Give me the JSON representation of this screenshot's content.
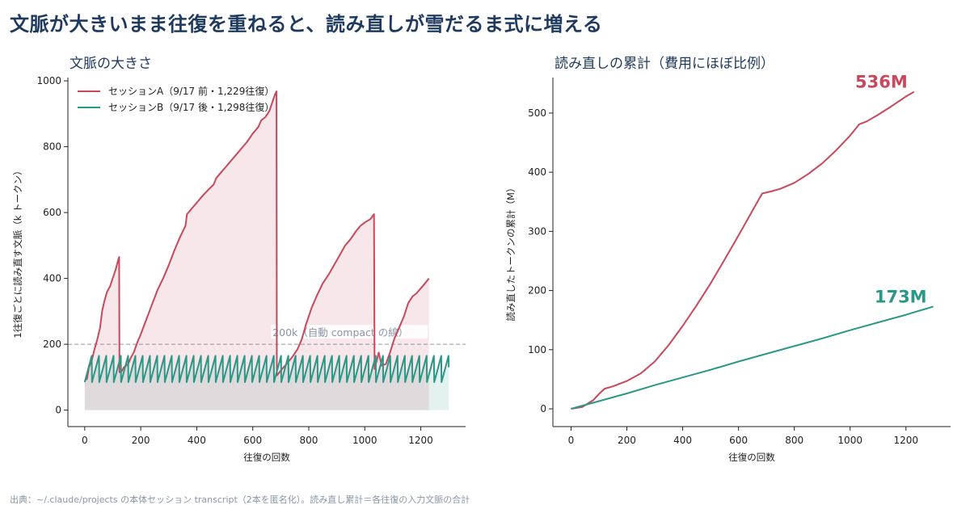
{
  "headline": "文脈が大きいまま往復を重ねると、読み直しが雪だるま式に増える",
  "footer": "出典：~/.claude/projects の本体セッション transcript（2本を匿名化）。読み直し累計＝各往復の入力文脈の合計",
  "colors": {
    "session_a": "#c9485b",
    "session_b": "#2a9886",
    "title": "#1f3a5f",
    "threshold": "#8a96a6"
  },
  "chart_data": [
    {
      "type": "line",
      "title": "文脈の大きさ",
      "xlabel": "往復の回数",
      "ylabel": "1往復ごとに読み直す文脈（k トークン）",
      "xlim": [
        -60,
        1360
      ],
      "ylim": [
        -50,
        1010
      ],
      "xticks": [
        0,
        200,
        400,
        600,
        800,
        1000,
        1200
      ],
      "yticks": [
        0,
        200,
        400,
        600,
        800,
        1000
      ],
      "grid": false,
      "legend_position": "top-left",
      "fill_under": true,
      "threshold": {
        "y": 200,
        "label": "200k（自動 compact の線）"
      },
      "series": [
        {
          "name": "セッションA（9/17 前・1,229往復）",
          "color_key": "session_a",
          "points": [
            [
              0,
              90
            ],
            [
              8,
              95
            ],
            [
              15,
              130
            ],
            [
              25,
              150
            ],
            [
              35,
              185
            ],
            [
              45,
              215
            ],
            [
              55,
              250
            ],
            [
              62,
              300
            ],
            [
              70,
              330
            ],
            [
              80,
              360
            ],
            [
              90,
              375
            ],
            [
              100,
              400
            ],
            [
              110,
              425
            ],
            [
              120,
              458
            ],
            [
              123,
              465
            ],
            [
              124,
              115
            ],
            [
              130,
              115
            ],
            [
              140,
              130
            ],
            [
              155,
              140
            ],
            [
              165,
              160
            ],
            [
              175,
              175
            ],
            [
              190,
              210
            ],
            [
              200,
              230
            ],
            [
              220,
              275
            ],
            [
              240,
              320
            ],
            [
              260,
              365
            ],
            [
              280,
              400
            ],
            [
              300,
              440
            ],
            [
              320,
              485
            ],
            [
              340,
              525
            ],
            [
              360,
              560
            ],
            [
              365,
              595
            ],
            [
              380,
              610
            ],
            [
              400,
              630
            ],
            [
              420,
              650
            ],
            [
              440,
              668
            ],
            [
              460,
              685
            ],
            [
              470,
              705
            ],
            [
              485,
              720
            ],
            [
              500,
              735
            ],
            [
              520,
              755
            ],
            [
              540,
              775
            ],
            [
              560,
              795
            ],
            [
              580,
              815
            ],
            [
              600,
              840
            ],
            [
              620,
              860
            ],
            [
              630,
              880
            ],
            [
              645,
              890
            ],
            [
              660,
              910
            ],
            [
              670,
              935
            ],
            [
              680,
              960
            ],
            [
              685,
              968
            ],
            [
              686,
              105
            ],
            [
              700,
              120
            ],
            [
              720,
              140
            ],
            [
              740,
              160
            ],
            [
              760,
              185
            ],
            [
              775,
              215
            ],
            [
              790,
              260
            ],
            [
              810,
              310
            ],
            [
              830,
              350
            ],
            [
              850,
              385
            ],
            [
              870,
              410
            ],
            [
              890,
              440
            ],
            [
              910,
              470
            ],
            [
              930,
              500
            ],
            [
              950,
              520
            ],
            [
              970,
              545
            ],
            [
              985,
              560
            ],
            [
              1000,
              570
            ],
            [
              1010,
              575
            ],
            [
              1020,
              580
            ],
            [
              1033,
              595
            ],
            [
              1035,
              125
            ],
            [
              1050,
              175
            ],
            [
              1060,
              135
            ],
            [
              1075,
              140
            ],
            [
              1090,
              175
            ],
            [
              1105,
              215
            ],
            [
              1120,
              245
            ],
            [
              1140,
              285
            ],
            [
              1155,
              325
            ],
            [
              1170,
              345
            ],
            [
              1185,
              355
            ],
            [
              1200,
              370
            ],
            [
              1215,
              385
            ],
            [
              1229,
              400
            ]
          ]
        },
        {
          "name": "セッションB（9/17 後・1,298往復）",
          "color_key": "session_b",
          "sawtooth": {
            "start": 0,
            "end": 1300,
            "period": 26,
            "min": 85,
            "max": 165
          }
        }
      ]
    },
    {
      "type": "line",
      "title": "読み直しの累計（費用にほぼ比例）",
      "xlabel": "往復の回数",
      "ylabel": "読み直したトークンの累計（M）",
      "xlim": [
        -65,
        1360
      ],
      "ylim": [
        -30,
        560
      ],
      "xticks": [
        0,
        200,
        400,
        600,
        800,
        1000,
        1200
      ],
      "yticks": [
        0,
        100,
        200,
        300,
        400,
        500
      ],
      "grid": false,
      "series": [
        {
          "color_key": "session_a",
          "end_label": "536M",
          "points": [
            [
              0,
              0
            ],
            [
              40,
              3
            ],
            [
              80,
              15
            ],
            [
              100,
              25
            ],
            [
              120,
              34
            ],
            [
              150,
              38
            ],
            [
              200,
              47
            ],
            [
              250,
              60
            ],
            [
              300,
              80
            ],
            [
              350,
              108
            ],
            [
              400,
              140
            ],
            [
              450,
              175
            ],
            [
              500,
              212
            ],
            [
              550,
              252
            ],
            [
              600,
              293
            ],
            [
              650,
              335
            ],
            [
              685,
              364
            ],
            [
              720,
              368
            ],
            [
              750,
              372
            ],
            [
              800,
              382
            ],
            [
              850,
              397
            ],
            [
              900,
              415
            ],
            [
              950,
              437
            ],
            [
              1000,
              462
            ],
            [
              1033,
              481
            ],
            [
              1060,
              486
            ],
            [
              1100,
              497
            ],
            [
              1150,
              512
            ],
            [
              1200,
              528
            ],
            [
              1229,
              536
            ]
          ]
        },
        {
          "color_key": "session_b",
          "end_label": "173M",
          "points": [
            [
              0,
              0
            ],
            [
              100,
              13
            ],
            [
              200,
              26
            ],
            [
              300,
              40
            ],
            [
              400,
              53
            ],
            [
              500,
              66
            ],
            [
              600,
              80
            ],
            [
              700,
              93
            ],
            [
              800,
              106
            ],
            [
              900,
              119
            ],
            [
              1000,
              133
            ],
            [
              1100,
              146
            ],
            [
              1200,
              159
            ],
            [
              1298,
              173
            ]
          ]
        }
      ]
    }
  ]
}
